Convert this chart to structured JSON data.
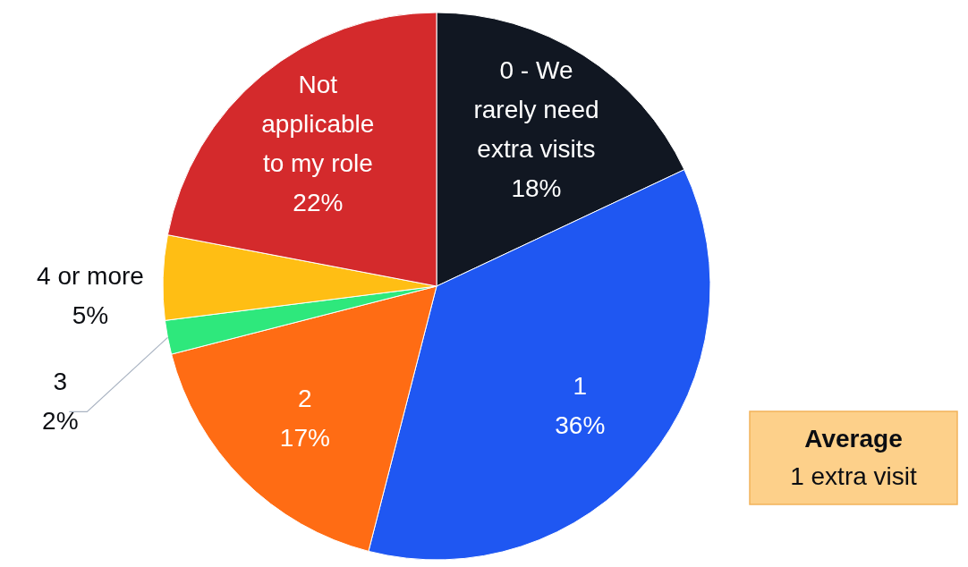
{
  "chart_data": {
    "type": "pie",
    "categories": [
      "0 - We rarely need extra visits",
      "1",
      "2",
      "3",
      "4 or more",
      "Not applicable to my role"
    ],
    "values": [
      18,
      36,
      17,
      2,
      5,
      22
    ],
    "colors": [
      "#111722",
      "#1f57f2",
      "#ff6c14",
      "#2ee87c",
      "#ffbe14",
      "#d42a2c"
    ],
    "value_labels": [
      "18%",
      "36%",
      "17%",
      "2%",
      "5%",
      "22%"
    ],
    "annotations": [
      "Average",
      "1 extra visit"
    ]
  }
}
